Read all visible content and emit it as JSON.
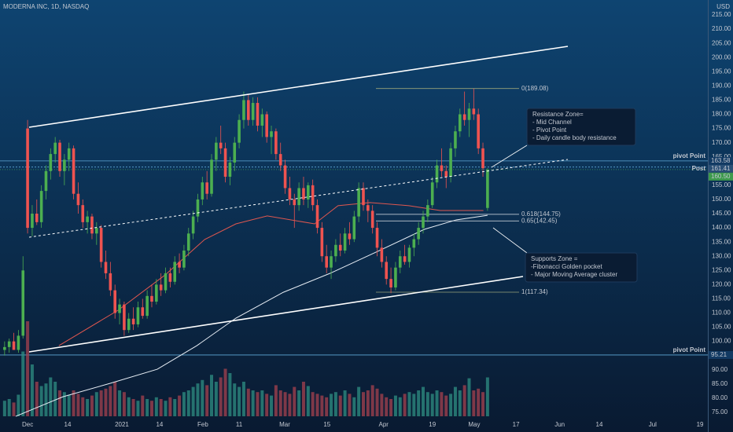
{
  "header": {
    "title": "MODERNA INC, 1D, NASDAQ",
    "currency": "USD"
  },
  "chart_data": {
    "type": "candlestick",
    "xlim": [
      -6,
      147.9
    ],
    "ylim": [
      68.08,
      220.26
    ],
    "grid": false,
    "xticks": [
      {
        "value": 0,
        "label": "Dec"
      },
      {
        "value": 8.7,
        "label": "14"
      },
      {
        "value": 20.5,
        "label": "2021"
      },
      {
        "value": 28.7,
        "label": "14"
      },
      {
        "value": 38.1,
        "label": "Feb"
      },
      {
        "value": 46,
        "label": "11"
      },
      {
        "value": 55.9,
        "label": "Mar"
      },
      {
        "value": 65.1,
        "label": "15"
      },
      {
        "value": 77.4,
        "label": "Apr"
      },
      {
        "value": 88,
        "label": "19"
      },
      {
        "value": 97.1,
        "label": "May"
      },
      {
        "value": 106.2,
        "label": "17"
      },
      {
        "value": 115.7,
        "label": "Jun"
      },
      {
        "value": 124.3,
        "label": "14"
      },
      {
        "value": 135.9,
        "label": "Jul"
      },
      {
        "value": 146.2,
        "label": "19"
      }
    ],
    "yticks": [
      {
        "value": 75,
        "label": "75.00"
      },
      {
        "value": 80,
        "label": "80.00"
      },
      {
        "value": 85,
        "label": "85.00"
      },
      {
        "value": 90,
        "label": "90.00"
      },
      {
        "value": 100,
        "label": "100.00"
      },
      {
        "value": 105,
        "label": "105.00"
      },
      {
        "value": 110,
        "label": "110.00"
      },
      {
        "value": 115,
        "label": "115.00"
      },
      {
        "value": 120,
        "label": "120.00"
      },
      {
        "value": 125,
        "label": "125.00"
      },
      {
        "value": 130,
        "label": "130.00"
      },
      {
        "value": 135,
        "label": "135.00"
      },
      {
        "value": 140,
        "label": "140.00"
      },
      {
        "value": 145,
        "label": "145.00"
      },
      {
        "value": 150,
        "label": "150.00"
      },
      {
        "value": 155,
        "label": "155.00"
      },
      {
        "value": 165,
        "label": "165.00"
      },
      {
        "value": 170,
        "label": "170.00"
      },
      {
        "value": 175,
        "label": "175.00"
      },
      {
        "value": 180,
        "label": "180.00"
      },
      {
        "value": 185,
        "label": "185.00"
      },
      {
        "value": 190,
        "label": "190.00"
      },
      {
        "value": 195,
        "label": "195.00"
      },
      {
        "value": 200,
        "label": "200.00"
      },
      {
        "value": 205,
        "label": "205.00"
      },
      {
        "value": 210,
        "label": "210.00"
      },
      {
        "value": 215,
        "label": "215.00"
      }
    ],
    "up_color": "#4caf50",
    "down_color": "#ef5350",
    "x": [
      -5,
      -4,
      -3,
      -2,
      -1,
      0,
      1,
      2,
      3,
      4,
      5,
      6,
      7,
      8,
      9,
      10,
      11,
      12,
      13,
      14,
      15,
      16,
      17,
      18,
      19,
      20,
      21,
      22,
      23,
      24,
      25,
      26,
      27,
      28,
      29,
      30,
      31,
      32,
      33,
      34,
      35,
      36,
      37,
      38,
      39,
      40,
      41,
      42,
      43,
      44,
      45,
      46,
      47,
      48,
      49,
      50,
      51,
      52,
      53,
      54,
      55,
      56,
      57,
      58,
      59,
      60,
      61,
      62,
      63,
      64,
      65,
      66,
      67,
      68,
      69,
      70,
      71,
      72,
      73,
      74,
      75,
      76,
      77,
      78,
      79,
      80,
      81,
      82,
      83,
      84,
      85,
      86,
      87,
      88,
      89,
      90,
      91,
      92,
      93,
      94,
      95,
      96,
      97,
      98,
      99,
      100
    ],
    "candles": [
      [
        97,
        100,
        95,
        98
      ],
      [
        98,
        101,
        96,
        100
      ],
      [
        100,
        103,
        98,
        97
      ],
      [
        97,
        104,
        96,
        102
      ],
      [
        102,
        130,
        101,
        125
      ],
      [
        175,
        178,
        138,
        140
      ],
      [
        140,
        148,
        137,
        145
      ],
      [
        145,
        150,
        141,
        142
      ],
      [
        142,
        155,
        140,
        153
      ],
      [
        153,
        162,
        150,
        160
      ],
      [
        160,
        168,
        157,
        166
      ],
      [
        166,
        172,
        163,
        170
      ],
      [
        170,
        171,
        158,
        160
      ],
      [
        160,
        166,
        155,
        164
      ],
      [
        164,
        170,
        160,
        168
      ],
      [
        168,
        169,
        150,
        152
      ],
      [
        152,
        156,
        145,
        148
      ],
      [
        148,
        150,
        140,
        142
      ],
      [
        142,
        146,
        138,
        144
      ],
      [
        144,
        145,
        136,
        138
      ],
      [
        138,
        142,
        134,
        140
      ],
      [
        140,
        141,
        126,
        128
      ],
      [
        128,
        132,
        122,
        124
      ],
      [
        124,
        128,
        116,
        118
      ],
      [
        118,
        120,
        108,
        110
      ],
      [
        110,
        115,
        106,
        113
      ],
      [
        113,
        114,
        102,
        104
      ],
      [
        104,
        110,
        103,
        108
      ],
      [
        108,
        112,
        104,
        106
      ],
      [
        106,
        114,
        105,
        112
      ],
      [
        112,
        115,
        108,
        109
      ],
      [
        109,
        118,
        108,
        116
      ],
      [
        116,
        120,
        112,
        114
      ],
      [
        114,
        122,
        113,
        120
      ],
      [
        120,
        124,
        116,
        118
      ],
      [
        118,
        126,
        117,
        124
      ],
      [
        124,
        126,
        119,
        121
      ],
      [
        121,
        130,
        120,
        128
      ],
      [
        128,
        131,
        124,
        126
      ],
      [
        126,
        134,
        125,
        132
      ],
      [
        132,
        140,
        130,
        138
      ],
      [
        138,
        146,
        136,
        144
      ],
      [
        144,
        152,
        142,
        150
      ],
      [
        150,
        158,
        148,
        156
      ],
      [
        156,
        160,
        150,
        152
      ],
      [
        152,
        166,
        151,
        164
      ],
      [
        164,
        172,
        160,
        170
      ],
      [
        170,
        176,
        166,
        168
      ],
      [
        168,
        170,
        156,
        158
      ],
      [
        158,
        165,
        155,
        163
      ],
      [
        163,
        172,
        160,
        170
      ],
      [
        170,
        180,
        168,
        178
      ],
      [
        178,
        188,
        175,
        185
      ],
      [
        185,
        187,
        176,
        178
      ],
      [
        178,
        186,
        176,
        184
      ],
      [
        184,
        186,
        174,
        176
      ],
      [
        176,
        182,
        172,
        180
      ],
      [
        180,
        181,
        170,
        172
      ],
      [
        172,
        176,
        166,
        174
      ],
      [
        174,
        175,
        164,
        166
      ],
      [
        166,
        170,
        160,
        162
      ],
      [
        162,
        164,
        152,
        154
      ],
      [
        154,
        158,
        148,
        150
      ],
      [
        150,
        152,
        140,
        148
      ],
      [
        148,
        156,
        146,
        154
      ],
      [
        154,
        158,
        148,
        150
      ],
      [
        150,
        156,
        147,
        155
      ],
      [
        155,
        157,
        146,
        148
      ],
      [
        148,
        150,
        138,
        140
      ],
      [
        140,
        142,
        128,
        130
      ],
      [
        130,
        134,
        124,
        126
      ],
      [
        126,
        132,
        122,
        130
      ],
      [
        130,
        136,
        128,
        134
      ],
      [
        134,
        138,
        130,
        132
      ],
      [
        132,
        140,
        131,
        138
      ],
      [
        138,
        142,
        134,
        136
      ],
      [
        136,
        146,
        135,
        144
      ],
      [
        144,
        156,
        142,
        154
      ],
      [
        154,
        156,
        146,
        148
      ],
      [
        148,
        150,
        142,
        146
      ],
      [
        146,
        148,
        138,
        140
      ],
      [
        140,
        142,
        130,
        133
      ],
      [
        133,
        136,
        126,
        128
      ],
      [
        128,
        130,
        120,
        122
      ],
      [
        122,
        126,
        117,
        119
      ],
      [
        119,
        128,
        118,
        126
      ],
      [
        126,
        132,
        124,
        130
      ],
      [
        130,
        134,
        127,
        128
      ],
      [
        128,
        134,
        126,
        133
      ],
      [
        133,
        138,
        130,
        136
      ],
      [
        136,
        142,
        134,
        140
      ],
      [
        140,
        146,
        138,
        144
      ],
      [
        144,
        150,
        142,
        148
      ],
      [
        148,
        158,
        147,
        156
      ],
      [
        156,
        164,
        154,
        162
      ],
      [
        162,
        168,
        158,
        160
      ],
      [
        160,
        162,
        154,
        158
      ],
      [
        158,
        170,
        156,
        168
      ],
      [
        168,
        176,
        165,
        174
      ],
      [
        174,
        182,
        172,
        180
      ],
      [
        180,
        188,
        176,
        178
      ],
      [
        178,
        184,
        172,
        182
      ],
      [
        182,
        189,
        178,
        180
      ],
      [
        180,
        182,
        166,
        168
      ],
      [
        168,
        170,
        158,
        161
      ],
      [
        147,
        161,
        146,
        160.5
      ]
    ],
    "volume": [
      18,
      20,
      16,
      25,
      75,
      110,
      60,
      40,
      35,
      38,
      45,
      40,
      30,
      28,
      25,
      30,
      26,
      22,
      20,
      24,
      28,
      30,
      32,
      35,
      40,
      30,
      28,
      22,
      20,
      18,
      24,
      20,
      18,
      22,
      20,
      18,
      22,
      20,
      24,
      28,
      30,
      34,
      38,
      42,
      36,
      48,
      40,
      45,
      55,
      50,
      38,
      34,
      40,
      32,
      30,
      28,
      30,
      26,
      24,
      36,
      30,
      28,
      26,
      34,
      30,
      40,
      35,
      28,
      26,
      24,
      22,
      26,
      28,
      24,
      30,
      26,
      22,
      34,
      28,
      30,
      36,
      32,
      26,
      22,
      20,
      24,
      22,
      26,
      28,
      26,
      30,
      34,
      28,
      26,
      30,
      28,
      24,
      26,
      34,
      30,
      36,
      44,
      30,
      32,
      28,
      45
    ],
    "moving_averages": [
      {
        "color": "#e0574f",
        "x": [
          6.8,
          19.7,
          29.9,
          38.5,
          45.3,
          52.1,
          62.4,
          67.5,
          74.4,
          82.9,
          89.7,
          99.1
        ],
        "values": [
          98.5,
          111,
          123.4,
          135.9,
          141.4,
          144.2,
          141.4,
          147.8,
          148.9,
          147.8,
          146.1,
          146.1
        ]
      },
      {
        "color": "#e8eef5",
        "x": [
          -2.6,
          7.7,
          17.9,
          28.2,
          36.8,
          45.3,
          55.6,
          65.8,
          76.1,
          86.3,
          93.2,
          100
        ],
        "values": [
          73.6,
          80.5,
          85.2,
          90.2,
          98.5,
          108.2,
          117.3,
          124,
          131.7,
          139.5,
          142.8,
          144.4
        ]
      }
    ],
    "price_lines": [
      {
        "value": 163.58,
        "name": "pivot Point"
      },
      {
        "value": 161.41,
        "name": "Post"
      },
      {
        "value": 95.21,
        "name": "pivot Point"
      }
    ],
    "last_price": {
      "value": 160.5,
      "label": "160.50"
    },
    "fibonacci": [
      {
        "value": 189.08,
        "label": "0(189.08)"
      },
      {
        "value": 144.75,
        "label": "0.618(144.75)"
      },
      {
        "value": 142.45,
        "label": "0.65(142.45)"
      },
      {
        "value": 117.34,
        "label": "1(117.34)"
      }
    ],
    "annotations": [
      {
        "lines": [
          "Resistance Zone=",
          "- Mid Channel",
          "- Pivot Point",
          "- Daily candle body resistance"
        ]
      },
      {
        "lines": [
          "Supports Zone =",
          "-Fibonacci Golden pocket",
          "- Major Moving Average cluster"
        ]
      }
    ]
  }
}
